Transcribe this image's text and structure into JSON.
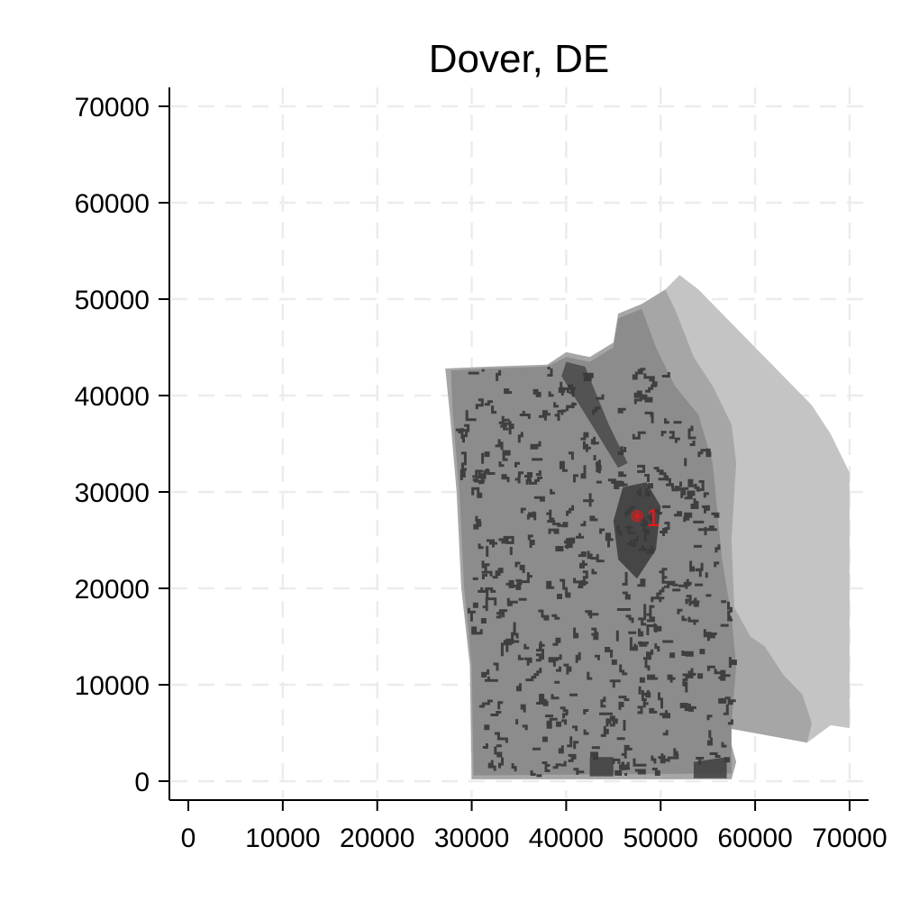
{
  "chart_data": {
    "type": "map",
    "title": "Dover, DE",
    "xlim": [
      -2000,
      72000
    ],
    "ylim": [
      -2000,
      72000
    ],
    "xticks": [
      0,
      10000,
      20000,
      30000,
      40000,
      50000,
      60000,
      70000
    ],
    "yticks": [
      0,
      10000,
      20000,
      30000,
      40000,
      50000,
      60000,
      70000
    ],
    "grid": true,
    "regions": [
      {
        "name": "",
        "color": "#c4c4c4",
        "polygon": [
          [
            52000,
            52500
          ],
          [
            54000,
            51000
          ],
          [
            57000,
            48000
          ],
          [
            60000,
            45000
          ],
          [
            63000,
            42000
          ],
          [
            66000,
            39000
          ],
          [
            68000,
            36000
          ],
          [
            70000,
            32000
          ],
          [
            70000,
            5500
          ],
          [
            68000,
            5800
          ],
          [
            65500,
            4000
          ],
          [
            61000,
            4800
          ],
          [
            59500,
            8000
          ],
          [
            58000,
            15000
          ],
          [
            56000,
            30000
          ],
          [
            53500,
            42000
          ],
          [
            51500,
            49000
          ],
          [
            50500,
            51000
          ]
        ]
      },
      {
        "name": "",
        "color": "#a6a6a6",
        "polygon": [
          [
            27200,
            42800
          ],
          [
            32000,
            43000
          ],
          [
            38000,
            43200
          ],
          [
            40000,
            44500
          ],
          [
            42500,
            44000
          ],
          [
            45000,
            45500
          ],
          [
            45500,
            48500
          ],
          [
            48000,
            49500
          ],
          [
            50500,
            51000
          ],
          [
            51500,
            49000
          ],
          [
            53500,
            44000
          ],
          [
            55500,
            41000
          ],
          [
            57500,
            37000
          ],
          [
            58000,
            33000
          ],
          [
            57800,
            30000
          ],
          [
            57500,
            25000
          ],
          [
            57800,
            18000
          ],
          [
            59500,
            15000
          ],
          [
            61000,
            14000
          ],
          [
            63000,
            11000
          ],
          [
            65000,
            9000
          ],
          [
            66000,
            6000
          ],
          [
            65500,
            4000
          ],
          [
            61000,
            4800
          ],
          [
            57000,
            5500
          ],
          [
            58000,
            2000
          ],
          [
            57500,
            200
          ],
          [
            30000,
            200
          ],
          [
            29800,
            12000
          ],
          [
            28900,
            20000
          ],
          [
            28400,
            30000
          ],
          [
            27700,
            38000
          ]
        ]
      },
      {
        "name": "",
        "color": "#8c8c8c",
        "polygon": [
          [
            27800,
            42600
          ],
          [
            32000,
            42800
          ],
          [
            38000,
            43000
          ],
          [
            40000,
            44000
          ],
          [
            42500,
            43500
          ],
          [
            45000,
            45000
          ],
          [
            45500,
            48000
          ],
          [
            48000,
            49000
          ],
          [
            49500,
            45000
          ],
          [
            51500,
            41000
          ],
          [
            54000,
            38000
          ],
          [
            55500,
            33000
          ],
          [
            56000,
            28000
          ],
          [
            56500,
            23000
          ],
          [
            57500,
            17000
          ],
          [
            58000,
            12000
          ],
          [
            57500,
            6000
          ],
          [
            57500,
            800
          ],
          [
            30200,
            600
          ],
          [
            30000,
            12000
          ],
          [
            29200,
            20000
          ],
          [
            28700,
            30000
          ],
          [
            28000,
            38000
          ]
        ]
      }
    ],
    "points": [
      {
        "label": "1",
        "x": 47500,
        "y": 27500,
        "color": "#e41a1c"
      }
    ]
  }
}
